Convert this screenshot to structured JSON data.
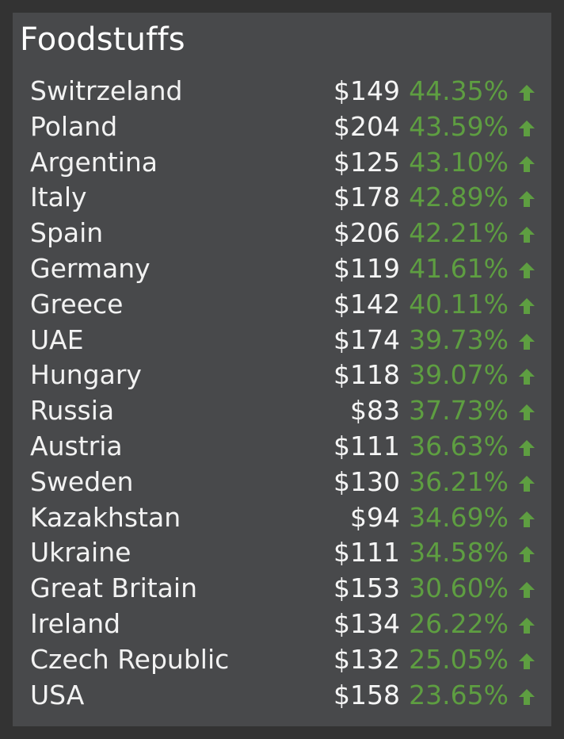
{
  "widget": {
    "title": "Foodstuffs"
  },
  "colors": {
    "background": "#333333",
    "panel": "#48494b",
    "positive_change": "#5e9e41",
    "text": "#f5f5f5"
  },
  "rows": [
    {
      "country": "Switrzeland",
      "price": "$149",
      "change": "44.35%",
      "trend_icon": "arrow-up-icon"
    },
    {
      "country": "Poland",
      "price": "$204",
      "change": "43.59%",
      "trend_icon": "arrow-up-icon"
    },
    {
      "country": "Argentina",
      "price": "$125",
      "change": "43.10%",
      "trend_icon": "arrow-up-icon"
    },
    {
      "country": "Italy",
      "price": "$178",
      "change": "42.89%",
      "trend_icon": "arrow-up-icon"
    },
    {
      "country": "Spain",
      "price": "$206",
      "change": "42.21%",
      "trend_icon": "arrow-up-icon"
    },
    {
      "country": "Germany",
      "price": "$119",
      "change": "41.61%",
      "trend_icon": "arrow-up-icon"
    },
    {
      "country": "Greece",
      "price": "$142",
      "change": "40.11%",
      "trend_icon": "arrow-up-icon"
    },
    {
      "country": "UAE",
      "price": "$174",
      "change": "39.73%",
      "trend_icon": "arrow-up-icon"
    },
    {
      "country": "Hungary",
      "price": "$118",
      "change": "39.07%",
      "trend_icon": "arrow-up-icon"
    },
    {
      "country": "Russia",
      "price": "$83",
      "change": "37.73%",
      "trend_icon": "arrow-up-icon"
    },
    {
      "country": "Austria",
      "price": "$111",
      "change": "36.63%",
      "trend_icon": "arrow-up-icon"
    },
    {
      "country": "Sweden",
      "price": "$130",
      "change": "36.21%",
      "trend_icon": "arrow-up-icon"
    },
    {
      "country": "Kazakhstan",
      "price": "$94",
      "change": "34.69%",
      "trend_icon": "arrow-up-icon"
    },
    {
      "country": "Ukraine",
      "price": "$111",
      "change": "34.58%",
      "trend_icon": "arrow-up-icon"
    },
    {
      "country": "Great Britain",
      "price": "$153",
      "change": "30.60%",
      "trend_icon": "arrow-up-icon"
    },
    {
      "country": "Ireland",
      "price": "$134",
      "change": "26.22%",
      "trend_icon": "arrow-up-icon"
    },
    {
      "country": "Czech Republic",
      "price": "$132",
      "change": "25.05%",
      "trend_icon": "arrow-up-icon"
    },
    {
      "country": "USA",
      "price": "$158",
      "change": "23.65%",
      "trend_icon": "arrow-up-icon"
    }
  ]
}
